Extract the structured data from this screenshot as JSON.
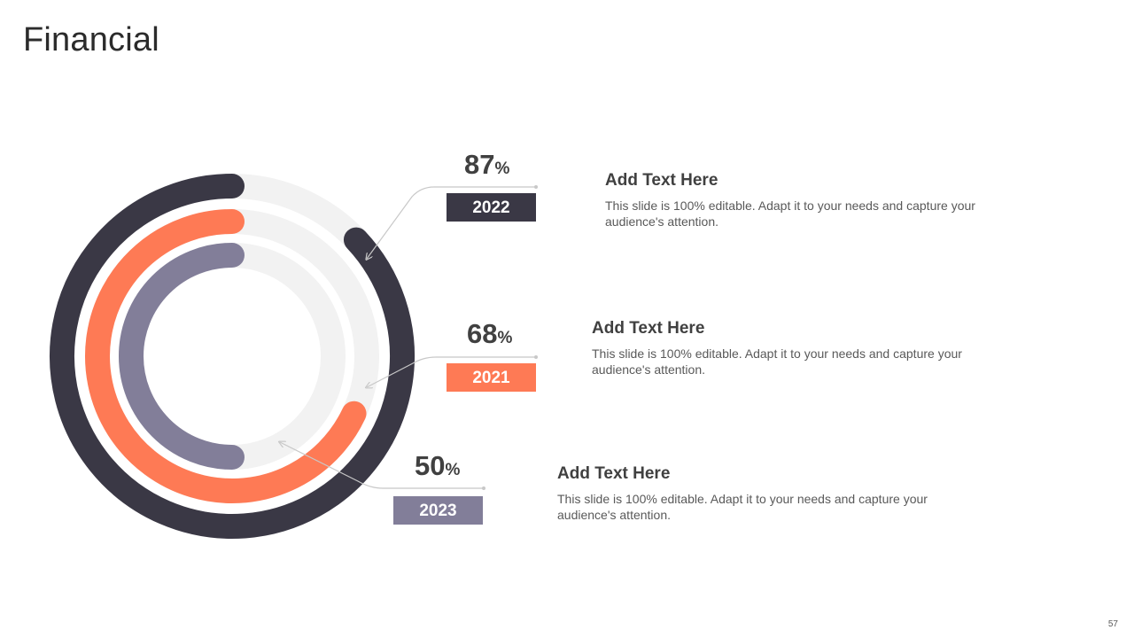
{
  "title": "Financial",
  "page_number": "57",
  "percent_symbol": "%",
  "colors": {
    "track": "#f2f2f2",
    "dark": "#3a3845",
    "orange": "#fe7a55",
    "gray": "#827e99",
    "connector": "#c8c8c8"
  },
  "entries": [
    {
      "value": "87",
      "year": "2022",
      "heading": "Add Text Here",
      "body": "This slide is 100% editable. Adapt it to your needs and capture your audience's attention."
    },
    {
      "value": "68",
      "year": "2021",
      "heading": "Add Text Here",
      "body": "This slide is 100% editable. Adapt it to your needs and capture your audience's attention."
    },
    {
      "value": "50",
      "year": "2023",
      "heading": "Add Text Here",
      "body": "This slide is 100% editable. Adapt it to your needs and capture your audience's attention."
    }
  ],
  "chart_data": {
    "type": "radial-bar",
    "categories": [
      "2022",
      "2021",
      "2023"
    ],
    "values": [
      87,
      68,
      50
    ],
    "max": 100,
    "unit": "%",
    "series": [
      {
        "name": "2022",
        "value": 87,
        "color": "#3a3845"
      },
      {
        "name": "2021",
        "value": 68,
        "color": "#fe7a55"
      },
      {
        "name": "2023",
        "value": 50,
        "color": "#827e99"
      }
    ]
  }
}
